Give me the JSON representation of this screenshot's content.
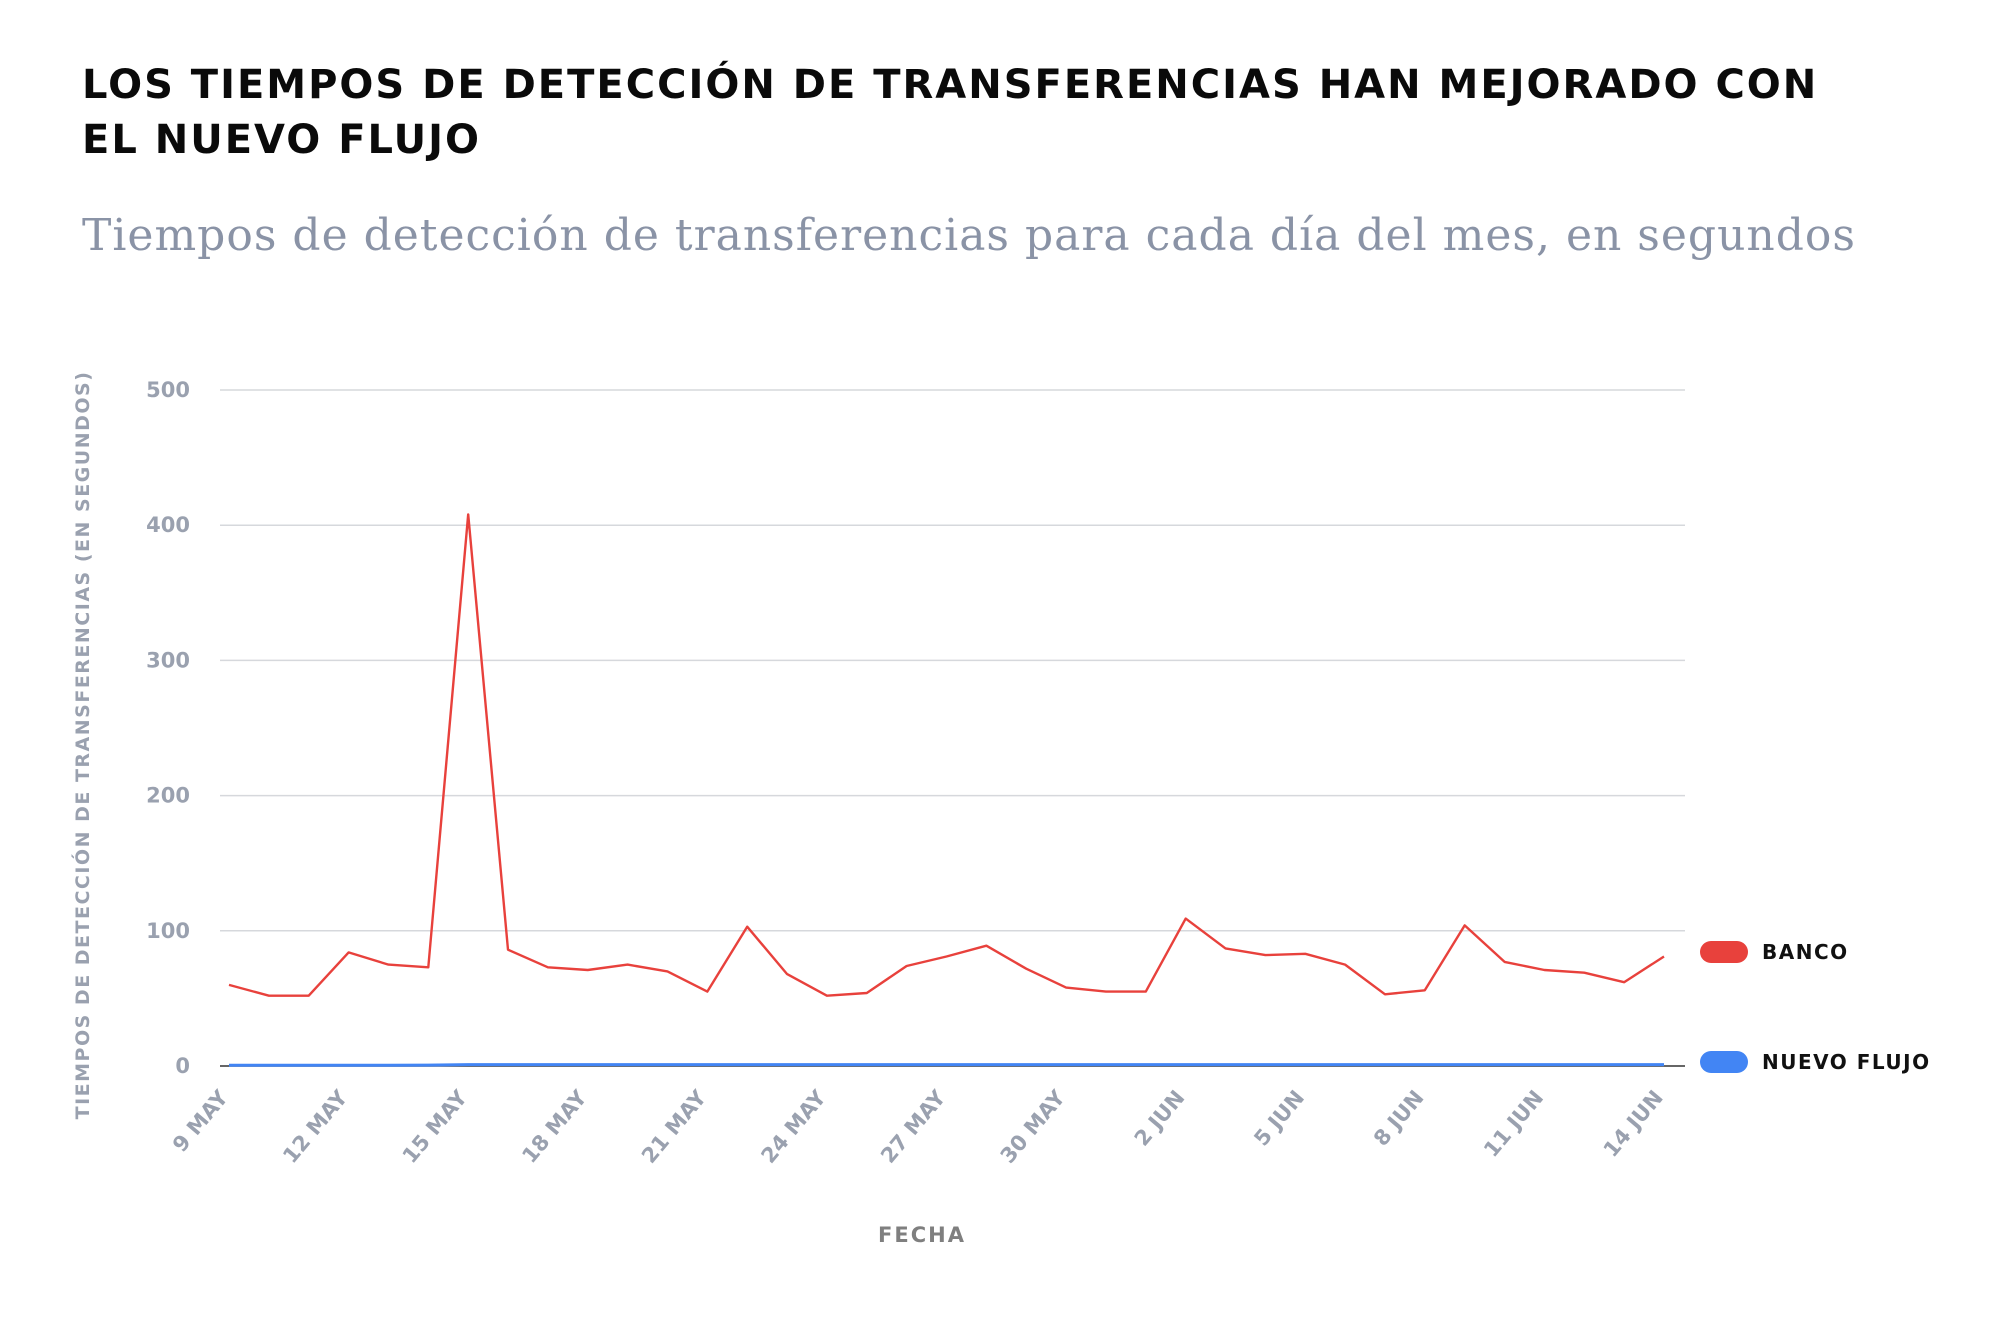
{
  "title": "LOS TIEMPOS DE DETECCIÓN DE TRANSFERENCIAS HAN MEJORADO CON EL NUEVO FLUJO",
  "subtitle": "Tiempos de detección de transferencias para cada día del mes, en segundos",
  "chart_data": {
    "type": "line",
    "xlabel": "FECHA",
    "ylabel": "TIEMPOS DE DETECCIÓN DE TRANSFERENCIAS (EN SEGUNDOS)",
    "ylim": [
      0,
      500
    ],
    "yticks": [
      0,
      100,
      200,
      300,
      400,
      500
    ],
    "x": [
      "9 MAY",
      "10 MAY",
      "11 MAY",
      "12 MAY",
      "13 MAY",
      "14 MAY",
      "15 MAY",
      "16 MAY",
      "17 MAY",
      "18 MAY",
      "19 MAY",
      "20 MAY",
      "21 MAY",
      "22 MAY",
      "23 MAY",
      "24 MAY",
      "25 MAY",
      "26 MAY",
      "27 MAY",
      "28 MAY",
      "29 MAY",
      "30 MAY",
      "31 MAY",
      "1 JUN",
      "2 JUN",
      "3 JUN",
      "4 JUN",
      "5 JUN",
      "6 JUN",
      "7 JUN",
      "8 JUN",
      "9 JUN",
      "10 JUN",
      "11 JUN",
      "12 JUN",
      "13 JUN",
      "14 JUN"
    ],
    "xtick_labels": [
      "9 MAY",
      "12 MAY",
      "15 MAY",
      "18 MAY",
      "21 MAY",
      "24 MAY",
      "27 MAY",
      "30 MAY",
      "2 JUN",
      "5 JUN",
      "8 JUN",
      "11 JUN",
      "14 JUN"
    ],
    "grid": true,
    "legend_placement": "right, at line ends",
    "series": [
      {
        "name": "BANCO",
        "color": "#e8413c",
        "values": [
          60,
          52,
          52,
          84,
          75,
          73,
          408,
          86,
          73,
          71,
          75,
          70,
          55,
          103,
          68,
          52,
          54,
          74,
          81,
          89,
          72,
          58,
          55,
          55,
          109,
          87,
          82,
          83,
          75,
          53,
          56,
          104,
          77,
          71,
          69,
          62,
          81
        ]
      },
      {
        "name": "NUEVO FLUJO",
        "color": "#4285f4",
        "values": [
          0.5,
          0.5,
          0.5,
          0.6,
          0.6,
          0.7,
          1,
          1,
          1,
          1,
          1,
          1,
          1,
          1,
          1,
          1,
          1,
          1,
          1,
          1,
          1,
          1,
          1,
          1,
          1,
          1,
          1,
          1,
          1,
          1,
          1,
          1,
          1,
          1,
          1,
          1,
          1
        ]
      }
    ]
  }
}
